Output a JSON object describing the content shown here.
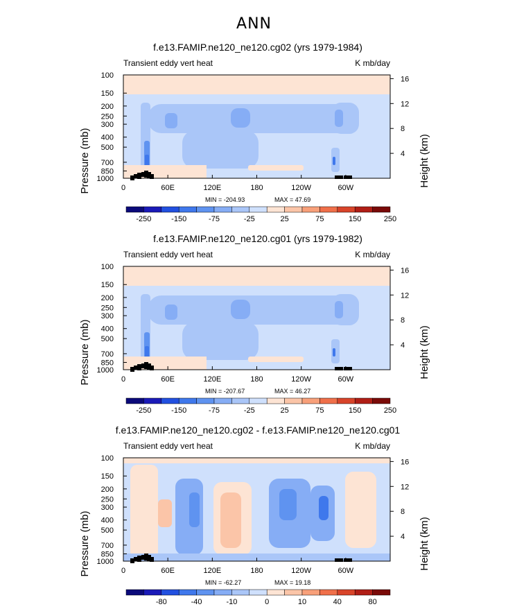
{
  "page_title": "ANN",
  "colors": {
    "ramp": [
      "#0b0a7a",
      "#1a1ab8",
      "#2250e0",
      "#3f78ec",
      "#5f93f0",
      "#86adf5",
      "#aac6f8",
      "#cfe0fc",
      "#fde4d4",
      "#fbc5a8",
      "#f8a07a",
      "#f0704a",
      "#d8442a",
      "#b01e16",
      "#7a0a08"
    ],
    "topo": "#000000",
    "frame": "#000000"
  },
  "chart_data": [
    {
      "type": "heatmap",
      "title": "f.e13.FAMIP.ne120_ne120.cg02 (yrs 1979-1984)",
      "left_label": "Transient eddy vert heat",
      "right_label": "K mb/day",
      "ylabel": "Pressure (mb)",
      "y2label": "Height (km)",
      "yticks": [
        "100",
        "150",
        "200",
        "250",
        "300",
        "400",
        "500",
        "700",
        "850",
        "1000"
      ],
      "y2ticks": [
        "16",
        "12",
        "8",
        "4"
      ],
      "xticks": [
        "0",
        "60E",
        "120E",
        "180",
        "120W",
        "60W"
      ],
      "min_label": "MIN = -204.93",
      "max_label": "MAX =  47.69",
      "colorbar_labels": [
        "-250",
        "-150",
        "-75",
        "-25",
        "25",
        "75",
        "150",
        "250"
      ],
      "stats": {
        "min": -204.93,
        "max": 47.69
      }
    },
    {
      "type": "heatmap",
      "title": "f.e13.FAMIP.ne120_ne120.cg01 (yrs 1979-1982)",
      "left_label": "Transient eddy vert heat",
      "right_label": "K mb/day",
      "ylabel": "Pressure (mb)",
      "y2label": "Height (km)",
      "yticks": [
        "100",
        "150",
        "200",
        "250",
        "300",
        "400",
        "500",
        "700",
        "850",
        "1000"
      ],
      "y2ticks": [
        "16",
        "12",
        "8",
        "4"
      ],
      "xticks": [
        "0",
        "60E",
        "120E",
        "180",
        "120W",
        "60W"
      ],
      "min_label": "MIN = -207.67",
      "max_label": "MAX =  46.27",
      "colorbar_labels": [
        "-250",
        "-150",
        "-75",
        "-25",
        "25",
        "75",
        "150",
        "250"
      ],
      "stats": {
        "min": -207.67,
        "max": 46.27
      }
    },
    {
      "type": "heatmap",
      "title": "f.e13.FAMIP.ne120_ne120.cg02 - f.e13.FAMIP.ne120_ne120.cg01",
      "left_label": "Transient eddy vert heat",
      "right_label": "K mb/day",
      "ylabel": "Pressure (mb)",
      "y2label": "Height (km)",
      "yticks": [
        "100",
        "150",
        "200",
        "250",
        "300",
        "400",
        "500",
        "700",
        "850",
        "1000"
      ],
      "y2ticks": [
        "16",
        "12",
        "8",
        "4"
      ],
      "xticks": [
        "0",
        "60E",
        "120E",
        "180",
        "120W",
        "60W"
      ],
      "min_label": "MIN = -62.27",
      "max_label": "MAX =  19.18",
      "colorbar_labels": [
        "-80",
        "-40",
        "-10",
        "0",
        "10",
        "40",
        "80"
      ],
      "stats": {
        "min": -62.27,
        "max": 19.18
      }
    }
  ]
}
